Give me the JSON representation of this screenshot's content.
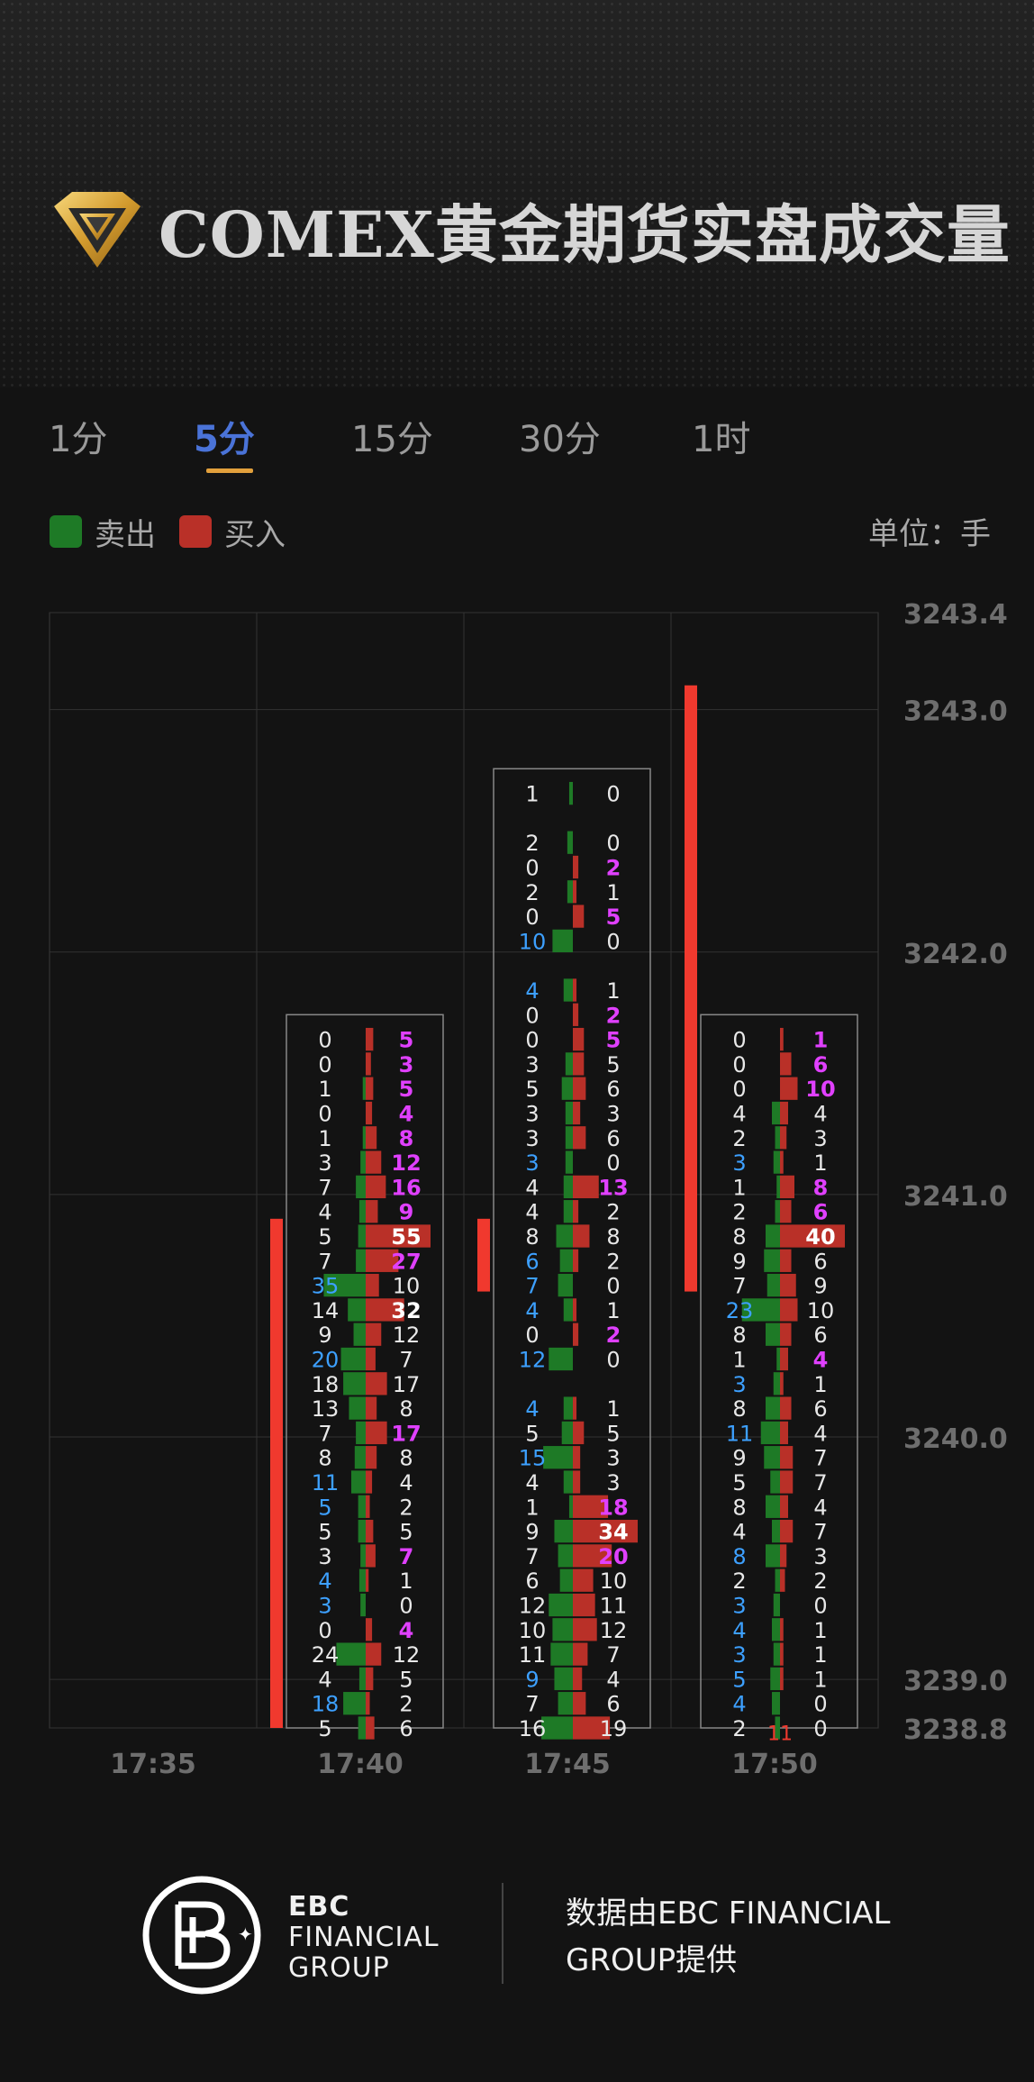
{
  "page": {
    "title": "COMEX黄金期货实盘成交量",
    "tabs": [
      "1分",
      "5分",
      "15分",
      "30分",
      "1时"
    ],
    "active_tab": 1,
    "legend": {
      "sell": "卖出",
      "buy": "买入"
    },
    "unit": "单位：手",
    "footer": {
      "brand_line1": "EBC",
      "brand_line2": "FINANCIAL",
      "brand_line3": "GROUP",
      "provider": "数据由EBC FINANCIAL GROUP提供"
    }
  },
  "colors": {
    "sell": "#1e7a26",
    "buy": "#b93028",
    "candle": "#f0392e",
    "tab_active": "#4a73d8",
    "tab_underline": "#e2a03c",
    "blue_num": "#3da0ff",
    "magenta_num": "#e040ff"
  },
  "chart_data": {
    "type": "footprint",
    "title": "COMEX黄金期货实盘成交量",
    "y_ticks": [
      3243.4,
      3243.0,
      3242.0,
      3241.0,
      3240.0,
      3239.0,
      3238.8
    ],
    "ylim": [
      3238.8,
      3243.4
    ],
    "x_ticks": [
      "17:35",
      "17:40",
      "17:45",
      "17:50"
    ],
    "grid": true,
    "bars": [
      {
        "time": "17:40",
        "candle_low": 3238.8,
        "candle_high": 3240.9,
        "rows": [
          [
            0,
            5
          ],
          [
            0,
            3
          ],
          [
            1,
            5
          ],
          [
            0,
            4
          ],
          [
            1,
            8
          ],
          [
            3,
            12
          ],
          [
            7,
            16
          ],
          [
            4,
            9
          ],
          [
            5,
            55
          ],
          [
            7,
            27
          ],
          [
            35,
            10
          ],
          [
            14,
            32
          ],
          [
            9,
            12
          ],
          [
            20,
            7
          ],
          [
            18,
            17
          ],
          [
            13,
            8
          ],
          [
            7,
            17
          ],
          [
            8,
            8
          ],
          [
            11,
            4
          ],
          [
            5,
            2
          ],
          [
            5,
            5
          ],
          [
            3,
            7
          ],
          [
            4,
            1
          ],
          [
            3,
            0
          ],
          [
            0,
            4
          ],
          [
            24,
            12
          ],
          [
            4,
            5
          ],
          [
            18,
            2
          ],
          [
            5,
            6
          ]
        ]
      },
      {
        "time": "17:45",
        "candle_low": 3240.6,
        "candle_high": 3240.9,
        "rows": [
          [
            1,
            0
          ],
          [
            null,
            null
          ],
          [
            2,
            0
          ],
          [
            0,
            2
          ],
          [
            2,
            1
          ],
          [
            0,
            5
          ],
          [
            10,
            0
          ],
          [
            null,
            null
          ],
          [
            4,
            1
          ],
          [
            0,
            2
          ],
          [
            0,
            5
          ],
          [
            3,
            5
          ],
          [
            5,
            6
          ],
          [
            3,
            3
          ],
          [
            3,
            6
          ],
          [
            3,
            0
          ],
          [
            4,
            13
          ],
          [
            4,
            2
          ],
          [
            8,
            8
          ],
          [
            6,
            2
          ],
          [
            7,
            0
          ],
          [
            4,
            1
          ],
          [
            0,
            2
          ],
          [
            12,
            0
          ],
          [
            null,
            null
          ],
          [
            4,
            1
          ],
          [
            5,
            5
          ],
          [
            15,
            3
          ],
          [
            4,
            3
          ],
          [
            1,
            18
          ],
          [
            9,
            34
          ],
          [
            7,
            20
          ],
          [
            6,
            10
          ],
          [
            12,
            11
          ],
          [
            10,
            12
          ],
          [
            11,
            7
          ],
          [
            9,
            4
          ],
          [
            7,
            6
          ],
          [
            16,
            19
          ]
        ]
      },
      {
        "time": "17:50",
        "candle_low": 3240.6,
        "candle_high": 3243.1,
        "delta_label": "11",
        "rows": [
          [
            0,
            1
          ],
          [
            0,
            6
          ],
          [
            0,
            10
          ],
          [
            4,
            4
          ],
          [
            2,
            3
          ],
          [
            3,
            1
          ],
          [
            1,
            8
          ],
          [
            2,
            6
          ],
          [
            8,
            40
          ],
          [
            9,
            6
          ],
          [
            7,
            9
          ],
          [
            23,
            10
          ],
          [
            8,
            6
          ],
          [
            1,
            4
          ],
          [
            3,
            1
          ],
          [
            8,
            6
          ],
          [
            11,
            4
          ],
          [
            9,
            7
          ],
          [
            5,
            7
          ],
          [
            8,
            4
          ],
          [
            4,
            7
          ],
          [
            8,
            3
          ],
          [
            2,
            2
          ],
          [
            3,
            0
          ],
          [
            4,
            1
          ],
          [
            3,
            1
          ],
          [
            5,
            1
          ],
          [
            4,
            0
          ],
          [
            2,
            0
          ]
        ]
      }
    ]
  }
}
